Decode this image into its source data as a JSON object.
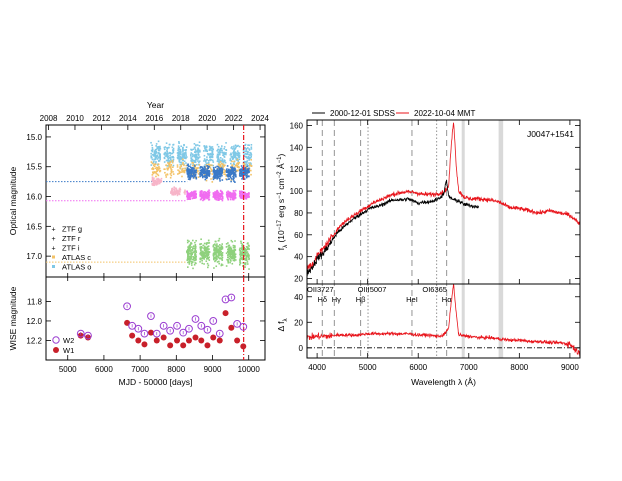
{
  "chart_data": [
    {
      "type": "scatter",
      "panel": "optical-light-curve",
      "top_axis_label": "Year",
      "top_ticks": [
        "2008",
        "2010",
        "2012",
        "2014",
        "2016",
        "2018",
        "2020",
        "2022",
        "2024"
      ],
      "top_tick_values": [
        2008,
        2010,
        2012,
        2014,
        2016,
        2018,
        2020,
        2022,
        2024
      ],
      "xlim": [
        4400,
        10450
      ],
      "ylabel": "Optical magnitude",
      "ylim": [
        17.35,
        14.8
      ],
      "y_ticks": [
        "15.0",
        "15.5",
        "16.0",
        "16.5",
        "17.0"
      ],
      "y_tick_values": [
        15.0,
        15.5,
        16.0,
        16.5,
        17.0
      ],
      "event_line_mjd": 9860,
      "legend_position": "bottom-left",
      "series": [
        {
          "name": "ZTF g",
          "color": "#8fd17d",
          "mjd_range": [
            8290,
            10080
          ],
          "mag_center": 16.95,
          "scatter": 0.22
        },
        {
          "name": "ZTF r",
          "color": "#f06cf0",
          "mjd_range": [
            8290,
            10080
          ],
          "mag_center": 15.98,
          "scatter": 0.09
        },
        {
          "name": "ZTF i",
          "color": "#3a79c7",
          "mjd_range": [
            8290,
            10080
          ],
          "mag_center": 15.62,
          "scatter": 0.12
        },
        {
          "name": "ATLAS c",
          "color": "#f3c266",
          "mjd_range": [
            7300,
            10080
          ],
          "mag_center": 15.55,
          "scatter": 0.18
        },
        {
          "name": "ATLAS o",
          "color": "#7fc8e6",
          "mjd_range": [
            7300,
            10080
          ],
          "mag_center": 15.4,
          "scatter": 0.22
        }
      ],
      "pink_cluster": {
        "color": "#f7b4c8",
        "mjd_range": [
          7330,
          7650
        ],
        "mag_center": 15.75
      },
      "pink_cluster2": {
        "color": "#f7b4c8",
        "mjd_range": [
          7850,
          8250
        ],
        "mag_center": 15.92
      },
      "reference_lines": [
        {
          "mag": 15.75,
          "color": "#3a79c7"
        },
        {
          "mag": 16.07,
          "color": "#f06cf0"
        },
        {
          "mag": 17.1,
          "color": "#f3c266"
        }
      ]
    },
    {
      "type": "scatter",
      "panel": "wise-light-curve",
      "xlabel": "MJD - 50000 [days]",
      "ylabel": "WISE magnitude",
      "xlim": [
        4400,
        10450
      ],
      "ylim": [
        12.4,
        11.55
      ],
      "x_ticks": [
        "5000",
        "6000",
        "7000",
        "8000",
        "9000",
        "10000"
      ],
      "x_tick_values": [
        5000,
        6000,
        7000,
        8000,
        9000,
        10000
      ],
      "y_ticks": [
        "11.8",
        "12.0",
        "12.2"
      ],
      "y_tick_values": [
        11.8,
        12.0,
        12.2
      ],
      "event_line_mjd": 9860,
      "legend_position": "bottom-left",
      "series": [
        {
          "name": "W2",
          "color": "#9b3fd1",
          "marker": "open-circle",
          "x": [
            5360,
            5560,
            6640,
            6780,
            6950,
            7120,
            7300,
            7460,
            7650,
            7830,
            8020,
            8190,
            8350,
            8530,
            8690,
            8860,
            9020,
            9200,
            9360,
            9520,
            9680,
            9850
          ],
          "y": [
            12.13,
            12.15,
            11.85,
            12.05,
            12.08,
            12.13,
            11.95,
            12.13,
            12.05,
            12.1,
            12.05,
            12.12,
            12.08,
            11.98,
            12.05,
            12.09,
            12.0,
            12.13,
            11.78,
            11.76,
            12.03,
            12.06
          ]
        },
        {
          "name": "W1",
          "color": "#c8202a",
          "marker": "filled-circle",
          "x": [
            5360,
            5560,
            6640,
            6780,
            6950,
            7120,
            7300,
            7460,
            7650,
            7830,
            8020,
            8190,
            8350,
            8530,
            8690,
            8860,
            9020,
            9200,
            9360,
            9520,
            9680,
            9850
          ],
          "y": [
            12.15,
            12.17,
            12.02,
            12.15,
            12.2,
            12.24,
            12.12,
            12.2,
            12.17,
            12.25,
            12.2,
            12.25,
            12.2,
            12.17,
            12.2,
            12.25,
            12.17,
            12.2,
            11.92,
            12.07,
            12.2,
            12.26
          ]
        }
      ]
    },
    {
      "type": "line",
      "panel": "spectra",
      "object": "J0047+1541",
      "ylabel": "fλ (10-17 erg s-1 cm-2 Å-1)",
      "ylabel_main": "f",
      "ylabel_sub": "λ",
      "ylabel_units": " (10",
      "ylabel_exp": "−17",
      "ylabel_units2": " erg s",
      "ylabel_exp2": "−1",
      "ylabel_units3": " cm",
      "ylabel_exp3": "−2",
      "ylabel_units4": " Å",
      "ylabel_exp4": "−1",
      "ylabel_close": ")",
      "xlim": [
        3800,
        9200
      ],
      "ylim": [
        15,
        165
      ],
      "y_ticks": [
        "20",
        "40",
        "60",
        "80",
        "100",
        "120",
        "140",
        "160"
      ],
      "y_tick_values": [
        20,
        40,
        60,
        80,
        100,
        120,
        140,
        160
      ],
      "legend_position": "top",
      "series": [
        {
          "name": "2000-12-01 SDSS",
          "color": "#000000",
          "x": [
            3800,
            3900,
            4000,
            4100,
            4200,
            4300,
            4400,
            4500,
            4600,
            4700,
            4800,
            4900,
            5000,
            5100,
            5200,
            5300,
            5400,
            5500,
            5600,
            5700,
            5800,
            5900,
            6000,
            6100,
            6200,
            6300,
            6400,
            6500,
            6560,
            6600,
            6700,
            6800,
            6900,
            7000,
            7100,
            7200
          ],
          "y": [
            25,
            30,
            38,
            42,
            48,
            55,
            62,
            66,
            70,
            74,
            77,
            80,
            83,
            85,
            86,
            88,
            90,
            92,
            92,
            92,
            93,
            91,
            89,
            90,
            90,
            91,
            93,
            97,
            110,
            95,
            92,
            91,
            88,
            87,
            86,
            86
          ]
        },
        {
          "name": "2022-10-04 MMT",
          "color": "#e8141b",
          "x": [
            3800,
            3900,
            4000,
            4100,
            4200,
            4300,
            4400,
            4500,
            4600,
            4700,
            4800,
            4900,
            5000,
            5100,
            5200,
            5300,
            5400,
            5500,
            5600,
            5700,
            5800,
            5900,
            6000,
            6100,
            6200,
            6300,
            6400,
            6500,
            6600,
            6650,
            6700,
            6750,
            6800,
            6900,
            7000,
            7200,
            7400,
            7600,
            7800,
            8000,
            8200,
            8400,
            8600,
            8800,
            9000,
            9200
          ],
          "y": [
            30,
            33,
            40,
            46,
            52,
            58,
            65,
            70,
            74,
            77,
            80,
            83,
            86,
            89,
            91,
            93,
            95,
            97,
            98,
            99,
            99,
            99,
            98,
            97,
            97,
            97,
            98,
            99,
            104,
            140,
            165,
            125,
            100,
            95,
            93,
            93,
            92,
            90,
            85,
            84,
            82,
            80,
            82,
            80,
            78,
            70
          ]
        }
      ]
    },
    {
      "type": "line",
      "panel": "difference-spectrum",
      "xlabel": "Wavelength λ (Å)",
      "ylabel": "Δ fλ",
      "ylabel_main": "Δ f",
      "ylabel_sub": "λ",
      "xlim": [
        3800,
        9200
      ],
      "ylim": [
        -8,
        50
      ],
      "x_ticks": [
        "4000",
        "5000",
        "6000",
        "7000",
        "8000",
        "9000"
      ],
      "x_tick_values": [
        4000,
        5000,
        6000,
        7000,
        8000,
        9000
      ],
      "y_ticks": [
        "0",
        "20",
        "40"
      ],
      "y_tick_values": [
        0,
        20,
        40
      ],
      "series": [
        {
          "name": "2022-10-04 MMT - 2000-12-01 SDSS",
          "color": "#e8141b",
          "x": [
            3800,
            4000,
            4200,
            4400,
            4600,
            4800,
            5000,
            5200,
            5400,
            5600,
            5800,
            6000,
            6200,
            6400,
            6500,
            6600,
            6650,
            6700,
            6750,
            6800,
            7000,
            7200,
            7400,
            7600,
            7800,
            8000,
            8200,
            8400,
            8600,
            8800,
            9000,
            9200
          ],
          "y": [
            8,
            9,
            9,
            10,
            10,
            10,
            11,
            11,
            11,
            11,
            11,
            10,
            10,
            9,
            10,
            15,
            35,
            50,
            28,
            10,
            9,
            8,
            8,
            7,
            6,
            6,
            5,
            5,
            4,
            4,
            3,
            -5
          ]
        }
      ],
      "line_markers": [
        {
          "wavelength": 3727,
          "label": "OII3727",
          "style": "dashed"
        },
        {
          "wavelength": 4102,
          "label": "Hδ",
          "style": "dashed"
        },
        {
          "wavelength": 4340,
          "label": "Hγ",
          "style": "dashed"
        },
        {
          "wavelength": 4861,
          "label": "Hβ",
          "style": "dashed"
        },
        {
          "wavelength": 5007,
          "label": "OIII5007",
          "style": "dotted"
        },
        {
          "wavelength": 5876,
          "label": "HeI",
          "style": "dashed"
        },
        {
          "wavelength": 6365,
          "label": "OI6365",
          "style": "dotted"
        },
        {
          "wavelength": 6563,
          "label": "Hα",
          "style": "dashed"
        }
      ],
      "telluric_bands": [
        [
          6860,
          6920
        ],
        [
          7590,
          7680
        ]
      ]
    }
  ]
}
